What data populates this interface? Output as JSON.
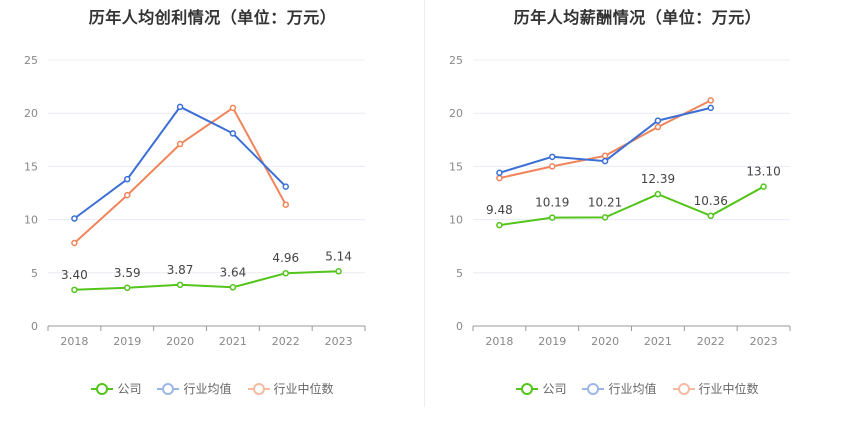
{
  "colors": {
    "company": "#52c41a",
    "industry_avg": "#3b6fd6",
    "industry_median": "#f0845a",
    "grid": "#e8ecf4",
    "axis": "#999999"
  },
  "legend": {
    "company": "公司",
    "industry_avg": "行业均值",
    "industry_median": "行业中位数"
  },
  "chart_data": [
    {
      "type": "line",
      "title": "历年人均创利情况（单位：万元）",
      "categories": [
        "2018",
        "2019",
        "2020",
        "2021",
        "2022",
        "2023"
      ],
      "ylim": [
        0,
        25
      ],
      "yticks": [
        0,
        5,
        10,
        15,
        20,
        25
      ],
      "grid": true,
      "legend_position": "bottom",
      "series": [
        {
          "name": "公司",
          "key": "company",
          "values": [
            3.4,
            3.59,
            3.87,
            3.64,
            4.96,
            5.14
          ],
          "labels": [
            "3.40",
            "3.59",
            "3.87",
            "3.64",
            "4.96",
            "5.14"
          ]
        },
        {
          "name": "行业均值",
          "key": "industry_avg",
          "values": [
            10.1,
            13.8,
            20.6,
            18.1,
            13.1,
            null
          ]
        },
        {
          "name": "行业中位数",
          "key": "industry_median",
          "values": [
            7.8,
            12.3,
            17.1,
            20.5,
            11.4,
            null
          ]
        }
      ]
    },
    {
      "type": "line",
      "title": "历年人均薪酬情况（单位：万元）",
      "categories": [
        "2018",
        "2019",
        "2020",
        "2021",
        "2022",
        "2023"
      ],
      "ylim": [
        0,
        25
      ],
      "yticks": [
        0,
        5,
        10,
        15,
        20,
        25
      ],
      "grid": true,
      "legend_position": "bottom",
      "series": [
        {
          "name": "公司",
          "key": "company",
          "values": [
            9.48,
            10.19,
            10.21,
            12.39,
            10.36,
            13.1
          ],
          "labels": [
            "9.48",
            "10.19",
            "10.21",
            "12.39",
            "10.36",
            "13.10"
          ]
        },
        {
          "name": "行业均值",
          "key": "industry_avg",
          "values": [
            14.4,
            15.9,
            15.5,
            19.3,
            20.5,
            null
          ]
        },
        {
          "name": "行业中位数",
          "key": "industry_median",
          "values": [
            13.9,
            15.0,
            16.0,
            18.7,
            21.2,
            null
          ]
        }
      ]
    }
  ]
}
